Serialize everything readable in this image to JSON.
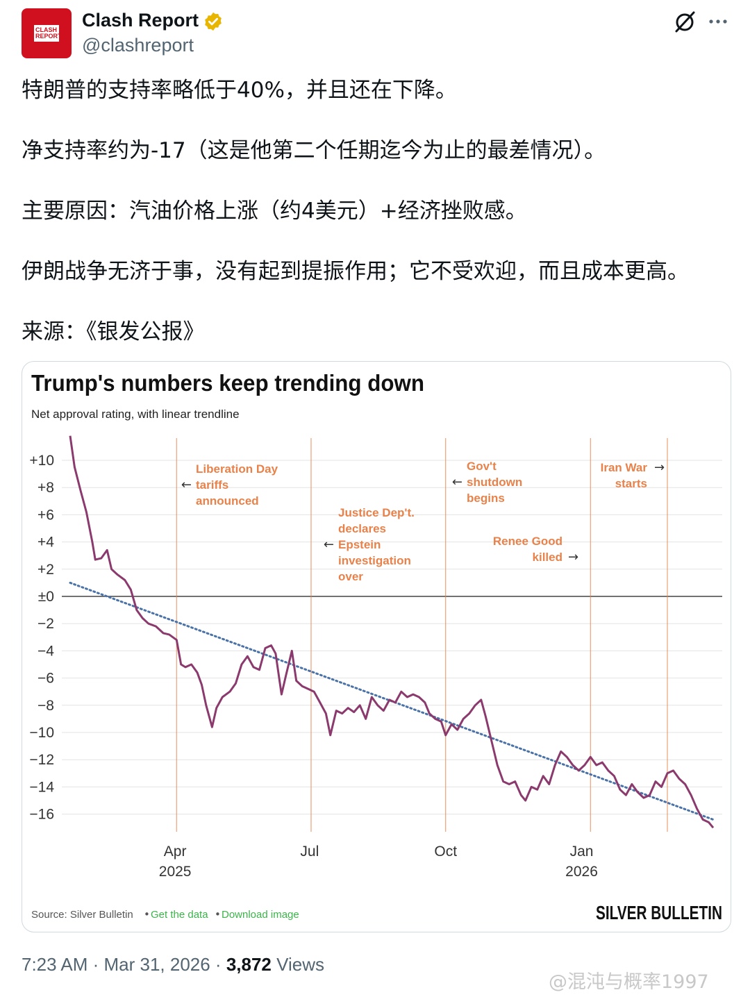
{
  "header": {
    "avatar_text": "CLASH REPORT",
    "display_name": "Clash Report",
    "handle": "@clashreport",
    "verified_color": "#e8b600",
    "icons": [
      "grok-icon",
      "more-icon"
    ]
  },
  "tweet": {
    "paragraphs": [
      "特朗普的支持率略低于40%，并且还在下降。",
      "净支持率约为-17（这是他第二个任期迄今为止的最差情况）。",
      "主要原因：汽油价格上涨（约4美元）+经济挫败感。",
      "伊朗战争无济于事，没有起到提振作用；它不受欢迎，而且成本更高。",
      "来源：《银发公报》"
    ]
  },
  "chart_data": {
    "type": "line",
    "title": "Trump's numbers keep trending down",
    "subtitle": "Net approval rating, with linear trendline",
    "ylim": [
      -17,
      12
    ],
    "y_ticks": [
      "+10",
      "+8",
      "+6",
      "+4",
      "+2",
      "±0",
      "−2",
      "−4",
      "−6",
      "−8",
      "−10",
      "−12",
      "−14",
      "−16"
    ],
    "y_tick_values": [
      10,
      8,
      6,
      4,
      2,
      0,
      -2,
      -4,
      -6,
      -8,
      -10,
      -12,
      -14,
      -16
    ],
    "x_range": [
      "2025-01-20",
      "2026-03-31"
    ],
    "x_ticks": [
      {
        "label": "Apr",
        "sub": "2025",
        "date": "2025-04-01"
      },
      {
        "label": "Jul",
        "sub": "",
        "date": "2025-07-01"
      },
      {
        "label": "Oct",
        "sub": "",
        "date": "2025-10-01"
      },
      {
        "label": "Jan",
        "sub": "2026",
        "date": "2026-01-01"
      }
    ],
    "series": [
      {
        "color": "#8b3a6d",
        "points": [
          [
            "2025-01-20",
            11.8
          ],
          [
            "2025-01-23",
            9.5
          ],
          [
            "2025-01-27",
            7.8
          ],
          [
            "2025-01-31",
            6.2
          ],
          [
            "2025-02-04",
            4.0
          ],
          [
            "2025-02-06",
            2.7
          ],
          [
            "2025-02-10",
            2.8
          ],
          [
            "2025-02-14",
            3.4
          ],
          [
            "2025-02-17",
            2.0
          ],
          [
            "2025-02-21",
            1.6
          ],
          [
            "2025-02-26",
            1.2
          ],
          [
            "2025-03-02",
            0.5
          ],
          [
            "2025-03-06",
            -1.0
          ],
          [
            "2025-03-10",
            -1.6
          ],
          [
            "2025-03-14",
            -2.0
          ],
          [
            "2025-03-19",
            -2.2
          ],
          [
            "2025-03-24",
            -2.7
          ],
          [
            "2025-03-28",
            -2.8
          ],
          [
            "2025-04-02",
            -3.2
          ],
          [
            "2025-04-05",
            -5.0
          ],
          [
            "2025-04-08",
            -5.2
          ],
          [
            "2025-04-12",
            -5.0
          ],
          [
            "2025-04-16",
            -5.6
          ],
          [
            "2025-04-19",
            -6.5
          ],
          [
            "2025-04-22",
            -8.0
          ],
          [
            "2025-04-26",
            -9.6
          ],
          [
            "2025-04-29",
            -8.2
          ],
          [
            "2025-05-03",
            -7.4
          ],
          [
            "2025-05-08",
            -7.0
          ],
          [
            "2025-05-12",
            -6.4
          ],
          [
            "2025-05-16",
            -5.0
          ],
          [
            "2025-05-20",
            -4.4
          ],
          [
            "2025-05-24",
            -5.2
          ],
          [
            "2025-05-28",
            -5.4
          ],
          [
            "2025-06-01",
            -3.8
          ],
          [
            "2025-06-05",
            -3.6
          ],
          [
            "2025-06-08",
            -4.2
          ],
          [
            "2025-06-12",
            -7.2
          ],
          [
            "2025-06-15",
            -5.8
          ],
          [
            "2025-06-19",
            -4.0
          ],
          [
            "2025-06-22",
            -6.2
          ],
          [
            "2025-06-26",
            -6.6
          ],
          [
            "2025-06-30",
            -6.8
          ],
          [
            "2025-07-04",
            -7.0
          ],
          [
            "2025-07-08",
            -7.8
          ],
          [
            "2025-07-12",
            -8.6
          ],
          [
            "2025-07-15",
            -10.2
          ],
          [
            "2025-07-19",
            -8.4
          ],
          [
            "2025-07-23",
            -8.6
          ],
          [
            "2025-07-27",
            -8.2
          ],
          [
            "2025-07-31",
            -8.5
          ],
          [
            "2025-08-04",
            -8.0
          ],
          [
            "2025-08-08",
            -9.0
          ],
          [
            "2025-08-12",
            -7.4
          ],
          [
            "2025-08-16",
            -8.0
          ],
          [
            "2025-08-20",
            -8.4
          ],
          [
            "2025-08-24",
            -7.6
          ],
          [
            "2025-08-28",
            -7.8
          ],
          [
            "2025-09-01",
            -7.0
          ],
          [
            "2025-09-05",
            -7.4
          ],
          [
            "2025-09-09",
            -7.2
          ],
          [
            "2025-09-13",
            -7.4
          ],
          [
            "2025-09-17",
            -7.8
          ],
          [
            "2025-09-20",
            -8.6
          ],
          [
            "2025-09-24",
            -9.0
          ],
          [
            "2025-09-28",
            -9.2
          ],
          [
            "2025-10-01",
            -10.2
          ],
          [
            "2025-10-05",
            -9.4
          ],
          [
            "2025-10-09",
            -9.8
          ],
          [
            "2025-10-13",
            -9.0
          ],
          [
            "2025-10-17",
            -8.6
          ],
          [
            "2025-10-21",
            -8.0
          ],
          [
            "2025-10-25",
            -7.6
          ],
          [
            "2025-10-28",
            -8.8
          ],
          [
            "2025-11-01",
            -10.6
          ],
          [
            "2025-11-05",
            -12.4
          ],
          [
            "2025-11-09",
            -13.6
          ],
          [
            "2025-11-13",
            -13.8
          ],
          [
            "2025-11-17",
            -13.6
          ],
          [
            "2025-11-21",
            -14.6
          ],
          [
            "2025-11-24",
            -15.0
          ],
          [
            "2025-11-28",
            -14.0
          ],
          [
            "2025-12-02",
            -14.2
          ],
          [
            "2025-12-06",
            -13.2
          ],
          [
            "2025-12-10",
            -13.8
          ],
          [
            "2025-12-14",
            -12.4
          ],
          [
            "2025-12-18",
            -11.4
          ],
          [
            "2025-12-22",
            -11.8
          ],
          [
            "2025-12-26",
            -12.4
          ],
          [
            "2025-12-30",
            -12.8
          ],
          [
            "2026-01-03",
            -12.4
          ],
          [
            "2026-01-07",
            -11.8
          ],
          [
            "2026-01-11",
            -12.4
          ],
          [
            "2026-01-15",
            -12.2
          ],
          [
            "2026-01-19",
            -12.8
          ],
          [
            "2026-01-23",
            -13.2
          ],
          [
            "2026-01-27",
            -14.2
          ],
          [
            "2026-01-31",
            -14.6
          ],
          [
            "2026-02-04",
            -13.8
          ],
          [
            "2026-02-08",
            -14.4
          ],
          [
            "2026-02-12",
            -14.8
          ],
          [
            "2026-02-16",
            -14.6
          ],
          [
            "2026-02-20",
            -13.6
          ],
          [
            "2026-02-24",
            -14.0
          ],
          [
            "2026-02-28",
            -13.0
          ],
          [
            "2026-03-04",
            -12.8
          ],
          [
            "2026-03-08",
            -13.4
          ],
          [
            "2026-03-12",
            -13.8
          ],
          [
            "2026-03-16",
            -14.6
          ],
          [
            "2026-03-20",
            -15.6
          ],
          [
            "2026-03-24",
            -16.4
          ],
          [
            "2026-03-28",
            -16.6
          ],
          [
            "2026-03-31",
            -17.0
          ]
        ]
      }
    ],
    "trendline": {
      "color": "#4a72a6",
      "start": [
        "2025-01-20",
        1.0
      ],
      "end": [
        "2026-03-31",
        -16.4
      ]
    },
    "events": [
      {
        "date": "2025-04-02",
        "lines": [
          "Liberation Day",
          "tariffs",
          "announced"
        ],
        "arrow": "left"
      },
      {
        "date": "2025-07-02",
        "lines": [
          "Justice Dep't.",
          "declares",
          "Epstein",
          "investigation",
          "over"
        ],
        "arrow": "left"
      },
      {
        "date": "2025-10-01",
        "lines": [
          "Gov't",
          "shutdown",
          "begins"
        ],
        "arrow": "left"
      },
      {
        "date": "2026-01-07",
        "lines": [
          "Renee Good",
          "killed"
        ],
        "arrow": "right"
      },
      {
        "date": "2026-02-28",
        "lines": [
          "Iran War",
          "starts"
        ],
        "arrow": "right"
      }
    ],
    "source_text": "Source: Silver Bulletin",
    "links": [
      "Get the data",
      "Download image"
    ],
    "brand": "SILVER BULLETIN",
    "colors": {
      "event": "#e8824a",
      "grid": "#e3e3e3",
      "zero": "#444444",
      "link": "#3cb44b"
    }
  },
  "footer": {
    "time": "7:23 AM · Mar 31, 2026 ·",
    "views_count": "3,872",
    "views_label": "Views"
  },
  "watermark": "@混沌与概率1997"
}
